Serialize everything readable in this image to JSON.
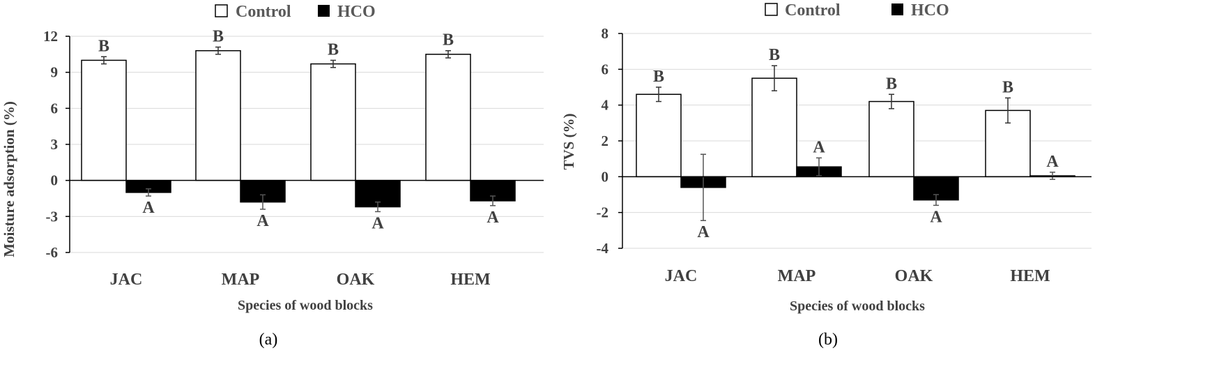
{
  "legend": {
    "control_label": "Control",
    "hco_label": "HCO"
  },
  "colors": {
    "control_fill": "#ffffff",
    "hco_fill": "#000000",
    "axis": "#000000",
    "grid": "#d9d9d9",
    "text": "#404040"
  },
  "chart_data": [
    {
      "type": "bar",
      "panel_label": "(a)",
      "title": "",
      "xlabel": "Species of wood blocks",
      "ylabel": "Moisture adsorption (%)",
      "categories": [
        "JAC",
        "MAP",
        "OAK",
        "HEM"
      ],
      "ylim": [
        -6,
        12
      ],
      "yticks": [
        -6,
        -3,
        0,
        3,
        6,
        9,
        12
      ],
      "ytick_labels": [
        "-6",
        "-3",
        "0",
        "3",
        "6",
        "9",
        "12"
      ],
      "grid": true,
      "legend_position": "top-center",
      "series": [
        {
          "name": "Control",
          "values": [
            10.0,
            10.8,
            9.7,
            10.5
          ],
          "errors": [
            0.3,
            0.3,
            0.3,
            0.3
          ],
          "letters": [
            "B",
            "B",
            "B",
            "B"
          ]
        },
        {
          "name": "HCO",
          "values": [
            -1.0,
            -1.8,
            -2.2,
            -1.7
          ],
          "errors": [
            0.3,
            0.6,
            0.4,
            0.4
          ],
          "letters": [
            "A",
            "A",
            "A",
            "A"
          ]
        }
      ]
    },
    {
      "type": "bar",
      "panel_label": "(b)",
      "title": "",
      "xlabel": "Species of wood blocks",
      "ylabel": "TVS (%)",
      "categories": [
        "JAC",
        "MAP",
        "OAK",
        "HEM"
      ],
      "ylim": [
        -4,
        8
      ],
      "yticks": [
        -4,
        -2,
        0,
        2,
        4,
        6,
        8
      ],
      "ytick_labels": [
        "-4",
        "-2",
        "0",
        "2",
        "4",
        "6",
        "8"
      ],
      "grid": true,
      "legend_position": "top-center",
      "series": [
        {
          "name": "Control",
          "values": [
            4.6,
            5.5,
            4.2,
            3.7
          ],
          "errors": [
            0.4,
            0.7,
            0.4,
            0.7
          ],
          "letters": [
            "B",
            "B",
            "B",
            "B"
          ]
        },
        {
          "name": "HCO",
          "values": [
            -0.6,
            0.55,
            -1.3,
            0.05
          ],
          "errors": [
            1.85,
            0.5,
            0.3,
            0.2
          ],
          "letters": [
            "A",
            "A",
            "A",
            "A"
          ]
        }
      ]
    }
  ]
}
